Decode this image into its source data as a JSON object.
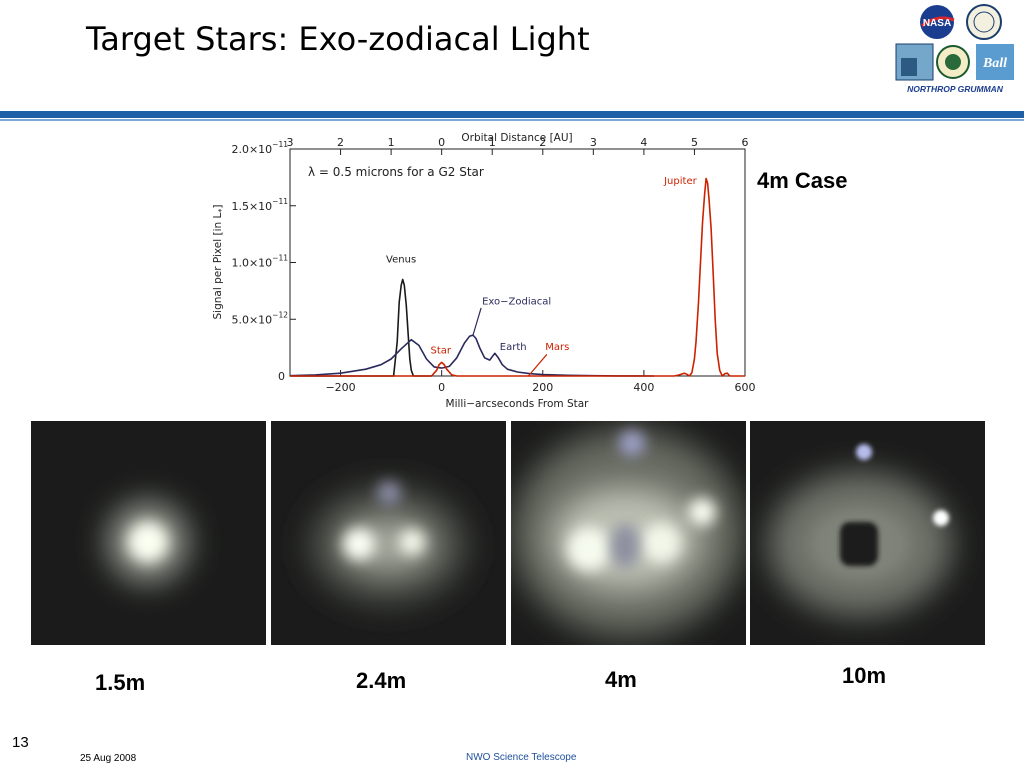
{
  "slide": {
    "title": "Target Stars: Exo-zodiacal Light",
    "case_label": "4m Case",
    "slide_number": "13",
    "date": "25 Aug 2008",
    "footer": "NWO Science Telescope",
    "accent_color": "#1f5fa8",
    "logos": [
      "NASA",
      "Goddard Space Flight Center",
      "Ball",
      "NORTHROP GRUMMAN"
    ]
  },
  "apertures": [
    {
      "label": "1.5m",
      "image": "simulated-exozodi-image-1.5m"
    },
    {
      "label": "2.4m",
      "image": "simulated-exozodi-image-2.4m"
    },
    {
      "label": "4m",
      "image": "simulated-exozodi-image-4m"
    },
    {
      "label": "10m",
      "image": "simulated-exozodi-image-10m"
    }
  ],
  "chart_data": {
    "type": "line",
    "annotation": "λ = 0.5 microns for a G2 Star",
    "xlabel": "Milli−arcseconds From Star",
    "ylabel": "Signal per Pixel [in L",
    "ylabel_sub": "*",
    "ylabel_end": "]",
    "top_xlabel": "Orbital Distance [AU]",
    "xlim": [
      -300,
      600
    ],
    "ylim": [
      0,
      2e-11
    ],
    "x_ticks": [
      {
        "value": -200,
        "label": "−200"
      },
      {
        "value": 0,
        "label": "0"
      },
      {
        "value": 200,
        "label": "200"
      },
      {
        "value": 400,
        "label": "400"
      },
      {
        "value": 600,
        "label": "600"
      }
    ],
    "top_ticks": [
      {
        "value": -300,
        "label": "3"
      },
      {
        "value": -200,
        "label": "2"
      },
      {
        "value": -100,
        "label": "1"
      },
      {
        "value": 0,
        "label": "0"
      },
      {
        "value": 100,
        "label": "1"
      },
      {
        "value": 200,
        "label": "2"
      },
      {
        "value": 300,
        "label": "3"
      },
      {
        "value": 400,
        "label": "4"
      },
      {
        "value": 500,
        "label": "5"
      },
      {
        "value": 600,
        "label": "6"
      }
    ],
    "y_ticks": [
      {
        "value": 0,
        "label": "0"
      },
      {
        "value": 5e-12,
        "label": "5.0×10",
        "exp": "−12"
      },
      {
        "value": 1e-11,
        "label": "1.0×10",
        "exp": "−11"
      },
      {
        "value": 1.5e-11,
        "label": "1.5×10",
        "exp": "−11"
      },
      {
        "value": 2e-11,
        "label": "2.0×10",
        "exp": "−11"
      }
    ],
    "series": [
      {
        "color": "#1a1a1a",
        "x": [
          -300,
          -110,
          -95,
          -88,
          -84,
          -80,
          -77,
          -74,
          -70,
          -66,
          -63,
          -60,
          -56,
          -50,
          -40,
          -20
        ],
        "y": [
          0,
          0,
          0,
          3e-12,
          6.5e-12,
          8e-12,
          8.5e-12,
          8e-12,
          6.2e-12,
          3.5e-12,
          1.5e-12,
          5e-13,
          0,
          0,
          0,
          0
        ]
      },
      {
        "color": "#2a2a5e",
        "x": [
          -300,
          -250,
          -200,
          -150,
          -120,
          -100,
          -80,
          -60,
          -45,
          -30,
          -15,
          0,
          15,
          30,
          45,
          55,
          62,
          68,
          75,
          85,
          95,
          105,
          112,
          120,
          130,
          150,
          175,
          200,
          250,
          300,
          350,
          420
        ],
        "y": [
          3e-14,
          1e-13,
          2.5e-13,
          6e-13,
          1e-12,
          1.5e-12,
          2.4e-12,
          3.2e-12,
          2.7e-12,
          1.5e-12,
          8e-13,
          7e-13,
          8.5e-13,
          1.6e-12,
          2.9e-12,
          3.5e-12,
          3.6e-12,
          3.3e-12,
          2.5e-12,
          1.6e-12,
          1.4e-12,
          2e-12,
          1.6e-12,
          1e-12,
          6e-13,
          3.5e-13,
          2e-13,
          1.2e-13,
          6e-14,
          2.5e-14,
          1e-14,
          0
        ]
      },
      {
        "color": "#cc2200",
        "x": [
          -300,
          -20,
          -10,
          -5,
          0,
          5,
          10,
          20,
          30,
          460,
          470,
          480,
          485,
          490,
          495,
          500,
          503,
          508,
          512,
          516,
          520,
          523,
          526,
          529,
          533,
          537,
          541,
          545,
          550,
          555,
          560,
          565,
          570,
          600
        ],
        "y": [
          0,
          0,
          5e-13,
          1e-12,
          1.2e-12,
          1e-12,
          6e-13,
          1e-13,
          0,
          0,
          1e-13,
          2.5e-13,
          1.5e-13,
          0,
          3e-13,
          1.5e-12,
          3e-12,
          6.5e-12,
          1e-11,
          1.35e-11,
          1.6e-11,
          1.74e-11,
          1.7e-11,
          1.55e-11,
          1.3e-11,
          9e-12,
          5e-12,
          2e-12,
          5e-13,
          0,
          2e-13,
          2.5e-13,
          0,
          0
        ]
      }
    ],
    "labels": [
      {
        "text": "Venus",
        "x": -110,
        "y": 1e-11,
        "color": "#1a1a1a"
      },
      {
        "text": "Exo−Zodiacal",
        "x": 80,
        "y": 6.3e-12,
        "color": "#2a2a5e"
      },
      {
        "text": "Earth",
        "x": 115,
        "y": 2.3e-12,
        "color": "#2a2a5e"
      },
      {
        "text": "Mars",
        "x": 205,
        "y": 2.3e-12,
        "color": "#cc2200"
      },
      {
        "text": "Star",
        "x": -22,
        "y": 2e-12,
        "color": "#cc2200"
      },
      {
        "text": "Jupiter",
        "x": 440,
        "y": 1.69e-11,
        "color": "#cc2200"
      }
    ],
    "pointers": [
      {
        "color": "#2a2a5e",
        "x1": 78,
        "y1": 6e-12,
        "x2": 62,
        "y2": 3.6e-12
      },
      {
        "color": "#cc2200",
        "x1": 208,
        "y1": 1.9e-12,
        "x2": 172,
        "y2": 2e-14
      }
    ]
  }
}
